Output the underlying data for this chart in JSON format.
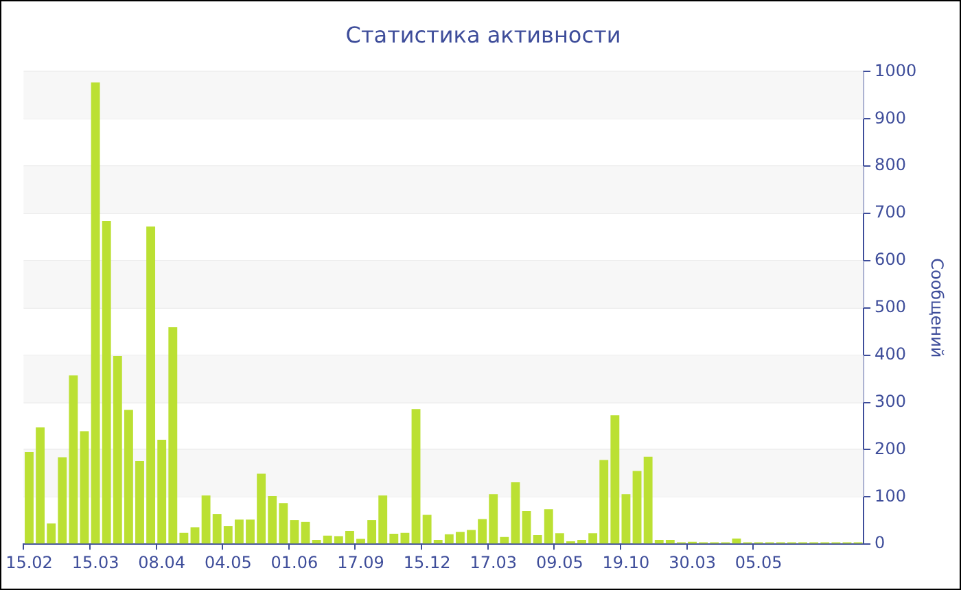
{
  "chart_data": {
    "type": "bar",
    "title": "Статистика активности",
    "ylabel": "Сообщений",
    "categories": [
      "15.02",
      null,
      null,
      null,
      null,
      null,
      "15.03",
      null,
      null,
      null,
      null,
      null,
      "08.04",
      null,
      null,
      null,
      null,
      null,
      "04.05",
      null,
      null,
      null,
      null,
      null,
      "01.06",
      null,
      null,
      null,
      null,
      null,
      "17.09",
      null,
      null,
      null,
      null,
      null,
      "15.12",
      null,
      null,
      null,
      null,
      null,
      "17.03",
      null,
      null,
      null,
      null,
      null,
      "09.05",
      null,
      null,
      null,
      null,
      null,
      "19.10",
      null,
      null,
      null,
      null,
      null,
      "30.03",
      null,
      null,
      null,
      null,
      null,
      "05.05",
      null,
      null,
      null,
      null,
      null,
      null,
      null,
      null,
      null
    ],
    "values": [
      195,
      247,
      44,
      184,
      357,
      239,
      977,
      684,
      398,
      284,
      176,
      672,
      221,
      459,
      24,
      36,
      103,
      64,
      38,
      52,
      52,
      149,
      102,
      87,
      51,
      47,
      9,
      18,
      17,
      28,
      11,
      51,
      103,
      22,
      24,
      286,
      62,
      9,
      21,
      26,
      30,
      53,
      106,
      15,
      131,
      70,
      19,
      74,
      23,
      6,
      9,
      23,
      178,
      273,
      106,
      155,
      185,
      9,
      9,
      4,
      5,
      4,
      4,
      4,
      12,
      4,
      4,
      4,
      4,
      4,
      4,
      4,
      4,
      4,
      4,
      4
    ],
    "color": "#bbe033",
    "ylim": [
      0,
      1000
    ],
    "yticks": [
      0,
      100,
      200,
      300,
      400,
      500,
      600,
      700,
      800,
      900,
      1000
    ],
    "grid": true,
    "legend": false
  }
}
